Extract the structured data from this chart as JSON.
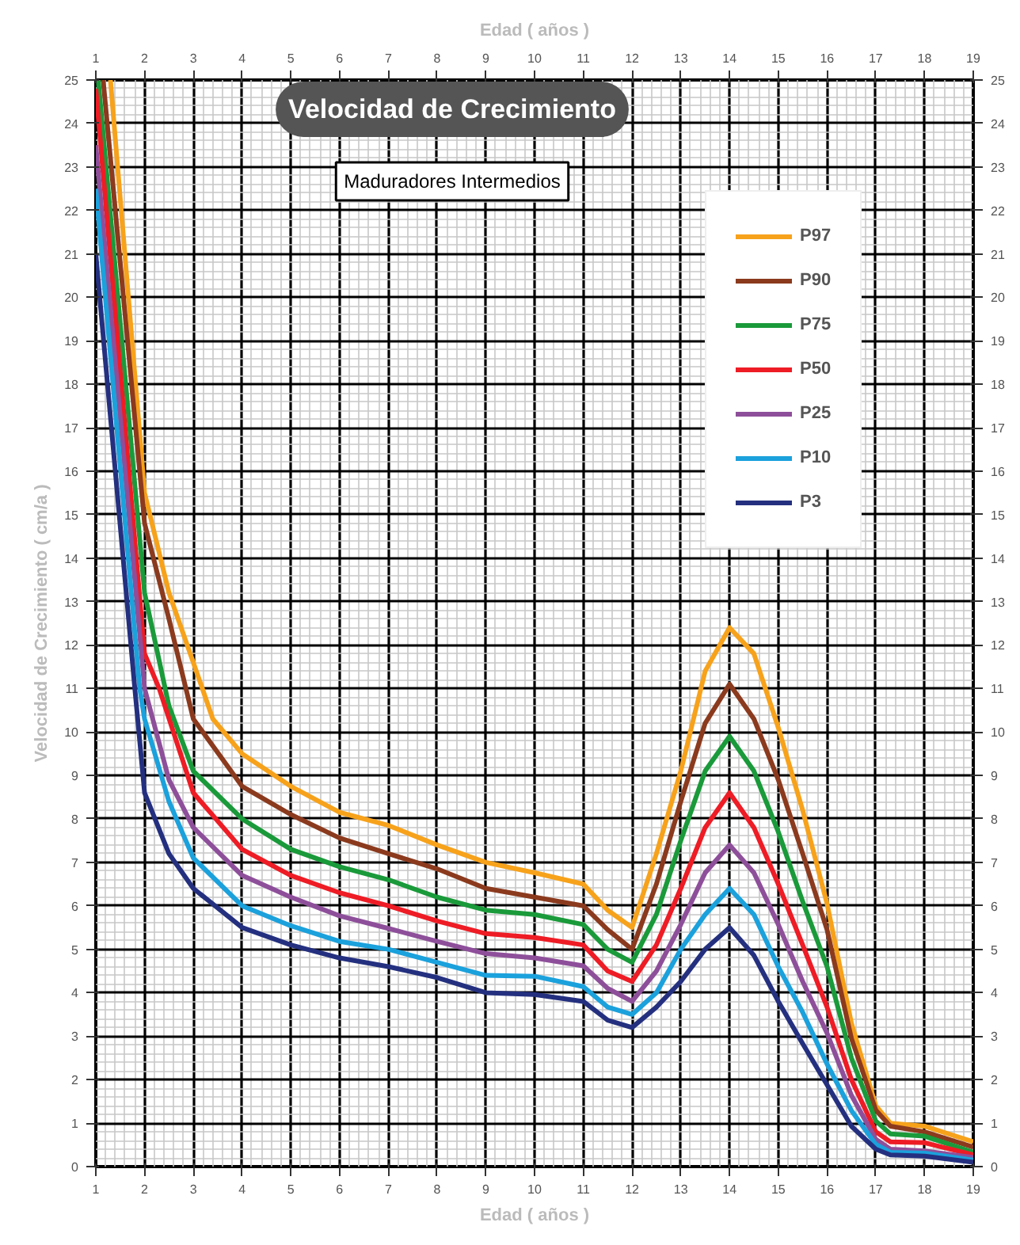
{
  "chart_data": {
    "type": "line",
    "title": "Velocidad de Crecimiento",
    "subtitle": "Maduradores Intermedios",
    "xlabel": "Edad ( años )",
    "x2label": "Edad ( años )",
    "ylabel": "Velocidad de Crecimiento ( cm/a )",
    "xlim": [
      1,
      19
    ],
    "xticks": [
      1,
      2,
      3,
      4,
      5,
      6,
      7,
      8,
      9,
      10,
      11,
      12,
      13,
      14,
      15,
      16,
      17,
      18,
      19
    ],
    "x2lim": [
      1,
      19
    ],
    "x2ticks": [
      1,
      2,
      3,
      4,
      5,
      6,
      7,
      8,
      9,
      10,
      11,
      12,
      13,
      14,
      15,
      16,
      17,
      18,
      19
    ],
    "ylim": [
      0,
      25
    ],
    "yticks": [
      0,
      1,
      2,
      3,
      4,
      5,
      6,
      7,
      8,
      9,
      10,
      11,
      12,
      13,
      14,
      15,
      16,
      17,
      18,
      19,
      20,
      21,
      22,
      23,
      24,
      25
    ],
    "y2lim": [
      0,
      25
    ],
    "y2ticks": [
      0,
      1,
      2,
      3,
      4,
      5,
      6,
      7,
      8,
      9,
      10,
      11,
      12,
      13,
      14,
      15,
      16,
      17,
      18,
      19,
      20,
      21,
      22,
      23,
      24,
      25
    ],
    "grid": true,
    "legend": "top right",
    "marker": "none",
    "line_style": "solid",
    "series": [
      {
        "name": "P97",
        "color": "#f7a21b",
        "x": [
          1.3,
          2,
          2.5,
          3,
          3.4,
          4,
          5,
          6,
          7,
          8,
          9,
          10,
          11,
          11.5,
          12,
          12.5,
          13,
          13.5,
          14,
          14.5,
          15,
          15.5,
          16,
          16.5,
          17,
          17.3,
          18,
          18.5,
          19
        ],
        "values": [
          25,
          15.5,
          13.2,
          11.6,
          10.3,
          9.5,
          8.75,
          8.15,
          7.85,
          7.4,
          7.0,
          6.76,
          6.5,
          5.9,
          5.5,
          7.2,
          9.1,
          11.4,
          12.4,
          11.8,
          10.1,
          8.2,
          6.05,
          3.3,
          1.4,
          1.0,
          0.93,
          0.75,
          0.57
        ]
      },
      {
        "name": "P90",
        "color": "#8b3a1e",
        "x": [
          1.15,
          2,
          2.5,
          3,
          4,
          5,
          6,
          7,
          8,
          9,
          10,
          11,
          11.5,
          12,
          12.5,
          13,
          13.5,
          14,
          14.5,
          15,
          15.5,
          16,
          16.5,
          17,
          17.3,
          18,
          19
        ],
        "values": [
          25,
          14.8,
          12.6,
          10.3,
          8.75,
          8.1,
          7.56,
          7.2,
          6.85,
          6.4,
          6.2,
          6.0,
          5.45,
          5.0,
          6.5,
          8.4,
          10.2,
          11.1,
          10.3,
          8.9,
          7.2,
          5.45,
          2.95,
          1.3,
          0.93,
          0.8,
          0.45
        ]
      },
      {
        "name": "P75",
        "color": "#1a9a3a",
        "x": [
          1.05,
          2,
          2.5,
          3,
          4,
          5,
          6,
          7,
          8,
          9,
          10,
          11,
          11.5,
          12,
          12.5,
          13,
          13.5,
          14,
          14.5,
          15,
          15.5,
          16,
          16.5,
          17,
          17.3,
          18,
          19
        ],
        "values": [
          25,
          13.2,
          10.6,
          9.1,
          8.0,
          7.3,
          6.9,
          6.6,
          6.2,
          5.9,
          5.8,
          5.57,
          5.0,
          4.7,
          5.8,
          7.5,
          9.1,
          9.9,
          9.1,
          7.7,
          6.1,
          4.6,
          2.5,
          1.05,
          0.75,
          0.7,
          0.33
        ]
      },
      {
        "name": "P50",
        "color": "#ee1c25",
        "x": [
          1,
          2,
          2.3,
          3,
          4,
          5,
          6,
          7,
          8,
          9,
          10,
          11,
          11.5,
          12,
          12.5,
          13,
          13.5,
          14,
          14.5,
          15,
          15.5,
          16,
          16.5,
          17,
          17.3,
          18,
          19
        ],
        "values": [
          24.8,
          11.8,
          11.0,
          8.6,
          7.3,
          6.7,
          6.3,
          6.0,
          5.65,
          5.36,
          5.27,
          5.1,
          4.5,
          4.26,
          5.1,
          6.4,
          7.8,
          8.6,
          7.8,
          6.5,
          5.1,
          3.67,
          2.0,
          0.8,
          0.57,
          0.55,
          0.27
        ]
      },
      {
        "name": "P25",
        "color": "#8e4f9a",
        "x": [
          1,
          2,
          2.5,
          3,
          4,
          5,
          6,
          7,
          8,
          9,
          10,
          11,
          11.5,
          12,
          12.5,
          13,
          13.5,
          14,
          14.5,
          15,
          15.5,
          16,
          16.5,
          17,
          17.3,
          18,
          19
        ],
        "values": [
          23.5,
          11.0,
          8.9,
          7.8,
          6.7,
          6.2,
          5.77,
          5.48,
          5.18,
          4.9,
          4.8,
          4.62,
          4.1,
          3.8,
          4.5,
          5.57,
          6.76,
          7.4,
          6.76,
          5.57,
          4.26,
          3.07,
          1.64,
          0.63,
          0.4,
          0.36,
          0.21
        ]
      },
      {
        "name": "P10",
        "color": "#1ba1dc",
        "x": [
          1,
          1.9,
          2,
          2.5,
          3,
          4,
          5,
          6,
          7,
          8,
          9,
          10,
          11,
          11.5,
          12,
          12.5,
          13,
          13.5,
          14,
          14.5,
          15,
          15.5,
          16,
          16.5,
          17,
          17.3,
          18,
          19
        ],
        "values": [
          22.5,
          11.0,
          10.3,
          8.4,
          7.1,
          6.0,
          5.54,
          5.18,
          5.0,
          4.7,
          4.4,
          4.38,
          4.14,
          3.67,
          3.5,
          4.0,
          5.0,
          5.8,
          6.4,
          5.8,
          4.6,
          3.55,
          2.36,
          1.29,
          0.51,
          0.33,
          0.31,
          0.15
        ]
      },
      {
        "name": "P3",
        "color": "#24307f",
        "x": [
          1,
          1.8,
          2,
          2.5,
          3,
          4,
          5,
          6,
          7,
          8,
          9,
          10,
          11,
          11.5,
          12,
          12.5,
          13,
          13.5,
          14,
          14.5,
          15,
          15.5,
          16,
          16.5,
          17,
          17.3,
          18,
          19
        ],
        "values": [
          21.0,
          11.0,
          8.6,
          7.2,
          6.4,
          5.5,
          5.1,
          4.8,
          4.6,
          4.35,
          4.0,
          3.96,
          3.8,
          3.37,
          3.2,
          3.67,
          4.26,
          5.0,
          5.5,
          4.86,
          3.8,
          2.83,
          1.88,
          0.93,
          0.4,
          0.27,
          0.24,
          0.1
        ]
      }
    ]
  }
}
